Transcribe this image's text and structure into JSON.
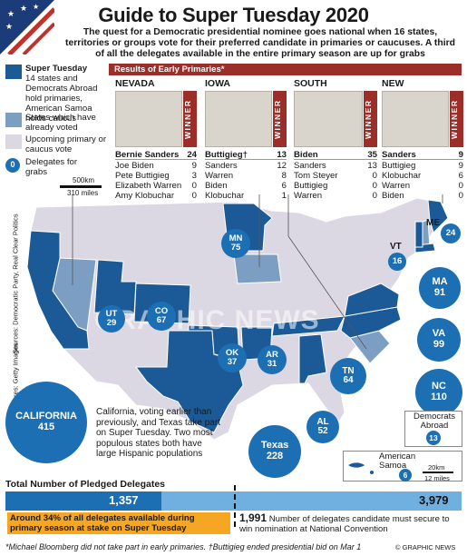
{
  "title": "Guide to Super Tuesday 2020",
  "intro": "The quest for a Democratic presidential nominee goes national when 16 states, territories or groups vote for their preferred candidate in primaries or caucuses. A third of all the delegates available in the entire primary season are up for grabs",
  "legend": {
    "super_tuesday_label": "Super Tuesday",
    "super_tuesday_desc": "14 states and Democrats Abroad hold primaries, American Samoa holds caucus",
    "voted": "States which have already voted",
    "upcoming": "Upcoming primary or caucus vote",
    "delegates_sample": "0",
    "delegates": "Delegates for grabs",
    "scale_km": "500km",
    "scale_miles": "310 miles",
    "colors": {
      "super_tuesday": "#1b5a96",
      "voted": "#7d9ec3",
      "upcoming": "#dcd8e3"
    }
  },
  "results": {
    "header": "Results of Early Primaries*",
    "winner_label": "WINNER",
    "states": [
      {
        "name": "NEVADA",
        "rows": [
          {
            "c": "Bernie Sanders",
            "v": "24"
          },
          {
            "c": "Joe Biden",
            "v": "9"
          },
          {
            "c": "Pete Buttigieg",
            "v": "3"
          },
          {
            "c": "Elizabeth Warren",
            "v": "0"
          },
          {
            "c": "Amy Klobuchar",
            "v": "0"
          }
        ]
      },
      {
        "name": "IOWA",
        "rows": [
          {
            "c": "Buttigieg†",
            "v": "13"
          },
          {
            "c": "Sanders",
            "v": "12"
          },
          {
            "c": "Warren",
            "v": "8"
          },
          {
            "c": "Biden",
            "v": "6"
          },
          {
            "c": "Klobuchar",
            "v": "1"
          }
        ]
      },
      {
        "name": "SOUTH CAROLINA",
        "rows": [
          {
            "c": "Biden",
            "v": "35"
          },
          {
            "c": "Sanders",
            "v": "13"
          },
          {
            "c": "Tom Steyer",
            "v": "0"
          },
          {
            "c": "Buttigieg",
            "v": "0"
          },
          {
            "c": "Warren",
            "v": "0"
          }
        ]
      },
      {
        "name": "NEW HAMPSHIRE",
        "rows": [
          {
            "c": "Sanders",
            "v": "9"
          },
          {
            "c": "Buttigieg",
            "v": "9"
          },
          {
            "c": "Klobuchar",
            "v": "6"
          },
          {
            "c": "Warren",
            "v": "0"
          },
          {
            "c": "Biden",
            "v": "0"
          }
        ]
      }
    ]
  },
  "map_states": [
    {
      "code": "CALIFORNIA",
      "delegates": "415"
    },
    {
      "code": "Texas",
      "delegates": "228"
    },
    {
      "code": "NC",
      "delegates": "110"
    },
    {
      "code": "VA",
      "delegates": "99"
    },
    {
      "code": "MA",
      "delegates": "91"
    },
    {
      "code": "MN",
      "delegates": "75"
    },
    {
      "code": "CO",
      "delegates": "67"
    },
    {
      "code": "TN",
      "delegates": "64"
    },
    {
      "code": "AL",
      "delegates": "52"
    },
    {
      "code": "OK",
      "delegates": "37"
    },
    {
      "code": "AR",
      "delegates": "31"
    },
    {
      "code": "UT",
      "delegates": "29"
    },
    {
      "code": "ME",
      "delegates": "24"
    },
    {
      "code": "VT",
      "delegates": "16"
    },
    {
      "code": "Democrats Abroad",
      "delegates": "13"
    },
    {
      "code": "American Samoa",
      "delegates": "6"
    }
  ],
  "annotation": "California, voting earlier than previously, and Texas take part on Super Tuesday. Two most populous states both have large Hispanic populations",
  "inset_scale": {
    "km": "20km",
    "miles": "12 miles"
  },
  "watermark": "GRAPHIC NEWS",
  "sources": "Sources: Democratic Party, Real Clear Politics",
  "pictures": "Pictures: Getty Images",
  "delegates_bar": {
    "title": "Total Number of Pledged Delegates",
    "super_tuesday": "1,357",
    "total": "3,979",
    "callout": "Around 34% of all delegates available during primary season at stake on Super Tuesday",
    "needed_number": "1,991",
    "needed_text": "Number of delegates candidate must secure to win nomination at National Convention"
  },
  "footnote": "*Michael Bloomberg did not take part in early primaries. †Buttigieg ended presidential bid on Mar 1",
  "credit": "© GRAPHIC NEWS"
}
